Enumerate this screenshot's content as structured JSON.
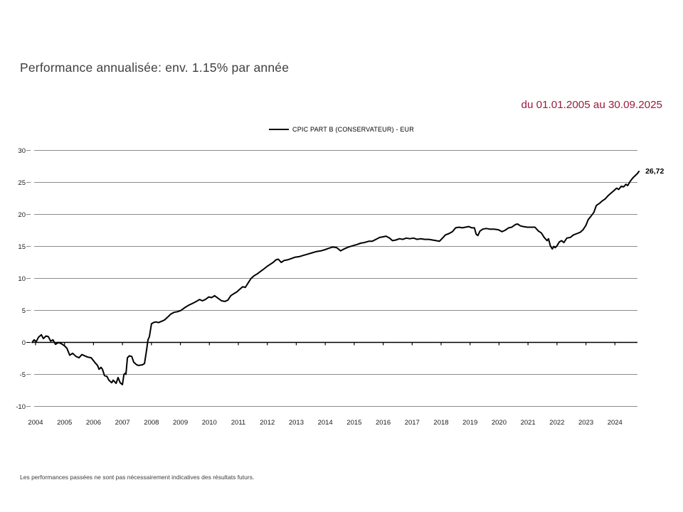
{
  "page": {
    "title": "Performance annualisée: env. 1.15% par année",
    "date_range": "du 01.01.2005 au 30.09.2025",
    "footer_disclaimer": "Les performances passées ne sont pas nécessairement indicatives des résultats futurs."
  },
  "colors": {
    "background": "#ffffff",
    "title_text": "#3f3f3f",
    "date_range_text": "#9b1b3c",
    "series_line": "#000000",
    "gridline": "#8c8c8c",
    "axis_line": "#000000",
    "axis_label_text": "#1a1a1a"
  },
  "legend": {
    "position": "top-center",
    "label": "CPIC PART B (CONSERVATEUR) - EUR"
  },
  "chart_data": {
    "type": "line",
    "title": "",
    "xlabel": "",
    "ylabel": "",
    "grid": "horizontal",
    "ylim": [
      -10,
      30
    ],
    "xlim": [
      2003.85,
      2024.95
    ],
    "y_ticks": [
      30,
      25,
      20,
      15,
      10,
      5,
      0,
      -5,
      -10
    ],
    "x_tick_labels": [
      "2004",
      "2005",
      "2006",
      "2007",
      "2008",
      "2009",
      "2010",
      "2011",
      "2012",
      "2013",
      "2014",
      "2015",
      "2016",
      "2017",
      "2018",
      "2019",
      "2020",
      "2021",
      "2022",
      "2023",
      "2024"
    ],
    "end_label": "26,72",
    "end_value": 26.72,
    "series": [
      {
        "name": "CPIC PART B (CONSERVATEUR) - EUR",
        "color": "#000000",
        "points": [
          [
            2003.88,
            0.0
          ],
          [
            2003.95,
            0.4
          ],
          [
            2004.02,
            0.1
          ],
          [
            2004.1,
            0.8
          ],
          [
            2004.2,
            1.2
          ],
          [
            2004.27,
            0.6
          ],
          [
            2004.36,
            1.0
          ],
          [
            2004.44,
            0.9
          ],
          [
            2004.52,
            0.2
          ],
          [
            2004.6,
            0.4
          ],
          [
            2004.69,
            -0.3
          ],
          [
            2004.79,
            0.0
          ],
          [
            2004.89,
            -0.2
          ],
          [
            2004.99,
            -0.5
          ],
          [
            2005.08,
            -0.9
          ],
          [
            2005.18,
            -2.0
          ],
          [
            2005.28,
            -1.7
          ],
          [
            2005.4,
            -2.2
          ],
          [
            2005.5,
            -2.4
          ],
          [
            2005.6,
            -1.9
          ],
          [
            2005.7,
            -2.1
          ],
          [
            2005.8,
            -2.3
          ],
          [
            2005.92,
            -2.4
          ],
          [
            2006.04,
            -3.1
          ],
          [
            2006.14,
            -3.6
          ],
          [
            2006.19,
            -4.2
          ],
          [
            2006.26,
            -3.9
          ],
          [
            2006.31,
            -4.2
          ],
          [
            2006.38,
            -5.2
          ],
          [
            2006.46,
            -5.3
          ],
          [
            2006.53,
            -5.9
          ],
          [
            2006.63,
            -6.3
          ],
          [
            2006.68,
            -5.9
          ],
          [
            2006.78,
            -6.4
          ],
          [
            2006.85,
            -5.5
          ],
          [
            2006.92,
            -6.3
          ],
          [
            2007.0,
            -6.6
          ],
          [
            2007.05,
            -5.0
          ],
          [
            2007.1,
            -4.8
          ],
          [
            2007.12,
            -5.0
          ],
          [
            2007.17,
            -2.4
          ],
          [
            2007.24,
            -2.1
          ],
          [
            2007.32,
            -2.2
          ],
          [
            2007.39,
            -3.1
          ],
          [
            2007.49,
            -3.5
          ],
          [
            2007.56,
            -3.6
          ],
          [
            2007.69,
            -3.5
          ],
          [
            2007.76,
            -3.3
          ],
          [
            2007.83,
            -1.3
          ],
          [
            2007.88,
            0.4
          ],
          [
            2007.93,
            0.9
          ],
          [
            2008.0,
            2.9
          ],
          [
            2008.07,
            3.1
          ],
          [
            2008.15,
            3.2
          ],
          [
            2008.25,
            3.1
          ],
          [
            2008.35,
            3.3
          ],
          [
            2008.45,
            3.5
          ],
          [
            2008.55,
            3.9
          ],
          [
            2008.66,
            4.4
          ],
          [
            2008.78,
            4.7
          ],
          [
            2008.9,
            4.8
          ],
          [
            2009.02,
            5.0
          ],
          [
            2009.14,
            5.4
          ],
          [
            2009.28,
            5.8
          ],
          [
            2009.42,
            6.1
          ],
          [
            2009.55,
            6.4
          ],
          [
            2009.66,
            6.7
          ],
          [
            2009.76,
            6.5
          ],
          [
            2009.86,
            6.7
          ],
          [
            2009.98,
            7.1
          ],
          [
            2010.08,
            7.0
          ],
          [
            2010.18,
            7.3
          ],
          [
            2010.3,
            6.9
          ],
          [
            2010.42,
            6.5
          ],
          [
            2010.53,
            6.4
          ],
          [
            2010.64,
            6.6
          ],
          [
            2010.74,
            7.3
          ],
          [
            2010.84,
            7.6
          ],
          [
            2010.95,
            7.9
          ],
          [
            2011.05,
            8.3
          ],
          [
            2011.15,
            8.7
          ],
          [
            2011.24,
            8.6
          ],
          [
            2011.34,
            9.3
          ],
          [
            2011.44,
            10.0
          ],
          [
            2011.54,
            10.4
          ],
          [
            2011.65,
            10.7
          ],
          [
            2011.77,
            11.1
          ],
          [
            2011.89,
            11.5
          ],
          [
            2012.0,
            11.9
          ],
          [
            2012.1,
            12.2
          ],
          [
            2012.2,
            12.5
          ],
          [
            2012.3,
            12.9
          ],
          [
            2012.38,
            13.0
          ],
          [
            2012.48,
            12.5
          ],
          [
            2012.58,
            12.8
          ],
          [
            2012.7,
            12.9
          ],
          [
            2012.83,
            13.1
          ],
          [
            2012.95,
            13.3
          ],
          [
            2013.1,
            13.4
          ],
          [
            2013.25,
            13.6
          ],
          [
            2013.4,
            13.8
          ],
          [
            2013.55,
            14.0
          ],
          [
            2013.7,
            14.2
          ],
          [
            2013.85,
            14.3
          ],
          [
            2014.0,
            14.5
          ],
          [
            2014.12,
            14.7
          ],
          [
            2014.25,
            14.9
          ],
          [
            2014.4,
            14.8
          ],
          [
            2014.53,
            14.3
          ],
          [
            2014.65,
            14.6
          ],
          [
            2014.8,
            14.9
          ],
          [
            2014.95,
            15.1
          ],
          [
            2015.1,
            15.3
          ],
          [
            2015.22,
            15.5
          ],
          [
            2015.35,
            15.6
          ],
          [
            2015.5,
            15.8
          ],
          [
            2015.62,
            15.8
          ],
          [
            2015.75,
            16.1
          ],
          [
            2015.88,
            16.4
          ],
          [
            2016.0,
            16.5
          ],
          [
            2016.1,
            16.6
          ],
          [
            2016.22,
            16.3
          ],
          [
            2016.32,
            15.9
          ],
          [
            2016.44,
            16.0
          ],
          [
            2016.56,
            16.2
          ],
          [
            2016.68,
            16.1
          ],
          [
            2016.8,
            16.3
          ],
          [
            2016.92,
            16.2
          ],
          [
            2017.05,
            16.3
          ],
          [
            2017.17,
            16.1
          ],
          [
            2017.3,
            16.2
          ],
          [
            2017.44,
            16.1
          ],
          [
            2017.58,
            16.1
          ],
          [
            2017.7,
            16.0
          ],
          [
            2017.83,
            15.9
          ],
          [
            2017.94,
            15.8
          ],
          [
            2018.05,
            16.3
          ],
          [
            2018.15,
            16.8
          ],
          [
            2018.27,
            17.0
          ],
          [
            2018.39,
            17.3
          ],
          [
            2018.5,
            17.9
          ],
          [
            2018.62,
            18.0
          ],
          [
            2018.73,
            17.9
          ],
          [
            2018.84,
            18.0
          ],
          [
            2018.95,
            18.1
          ],
          [
            2019.06,
            17.9
          ],
          [
            2019.15,
            17.9
          ],
          [
            2019.21,
            16.9
          ],
          [
            2019.27,
            16.7
          ],
          [
            2019.34,
            17.4
          ],
          [
            2019.44,
            17.7
          ],
          [
            2019.56,
            17.8
          ],
          [
            2019.68,
            17.7
          ],
          [
            2019.83,
            17.7
          ],
          [
            2019.98,
            17.6
          ],
          [
            2020.1,
            17.3
          ],
          [
            2020.2,
            17.5
          ],
          [
            2020.33,
            17.9
          ],
          [
            2020.44,
            18.0
          ],
          [
            2020.56,
            18.4
          ],
          [
            2020.64,
            18.5
          ],
          [
            2020.74,
            18.2
          ],
          [
            2020.84,
            18.1
          ],
          [
            2020.98,
            18.0
          ],
          [
            2021.1,
            18.0
          ],
          [
            2021.24,
            18.0
          ],
          [
            2021.36,
            17.4
          ],
          [
            2021.46,
            17.1
          ],
          [
            2021.56,
            16.4
          ],
          [
            2021.66,
            15.9
          ],
          [
            2021.71,
            16.2
          ],
          [
            2021.77,
            15.1
          ],
          [
            2021.84,
            14.6
          ],
          [
            2021.89,
            15.0
          ],
          [
            2021.94,
            14.8
          ],
          [
            2022.0,
            15.1
          ],
          [
            2022.08,
            15.7
          ],
          [
            2022.16,
            15.9
          ],
          [
            2022.24,
            15.6
          ],
          [
            2022.34,
            16.3
          ],
          [
            2022.46,
            16.4
          ],
          [
            2022.57,
            16.8
          ],
          [
            2022.69,
            17.0
          ],
          [
            2022.8,
            17.2
          ],
          [
            2022.9,
            17.6
          ],
          [
            2023.0,
            18.3
          ],
          [
            2023.08,
            19.2
          ],
          [
            2023.17,
            19.7
          ],
          [
            2023.27,
            20.3
          ],
          [
            2023.36,
            21.4
          ],
          [
            2023.46,
            21.7
          ],
          [
            2023.56,
            22.1
          ],
          [
            2023.66,
            22.4
          ],
          [
            2023.76,
            22.9
          ],
          [
            2023.86,
            23.3
          ],
          [
            2023.96,
            23.7
          ],
          [
            2024.06,
            24.1
          ],
          [
            2024.13,
            23.9
          ],
          [
            2024.22,
            24.4
          ],
          [
            2024.3,
            24.3
          ],
          [
            2024.38,
            24.7
          ],
          [
            2024.44,
            24.5
          ],
          [
            2024.53,
            25.2
          ],
          [
            2024.62,
            25.7
          ],
          [
            2024.71,
            26.1
          ],
          [
            2024.78,
            26.4
          ],
          [
            2024.83,
            26.72
          ]
        ]
      }
    ]
  }
}
